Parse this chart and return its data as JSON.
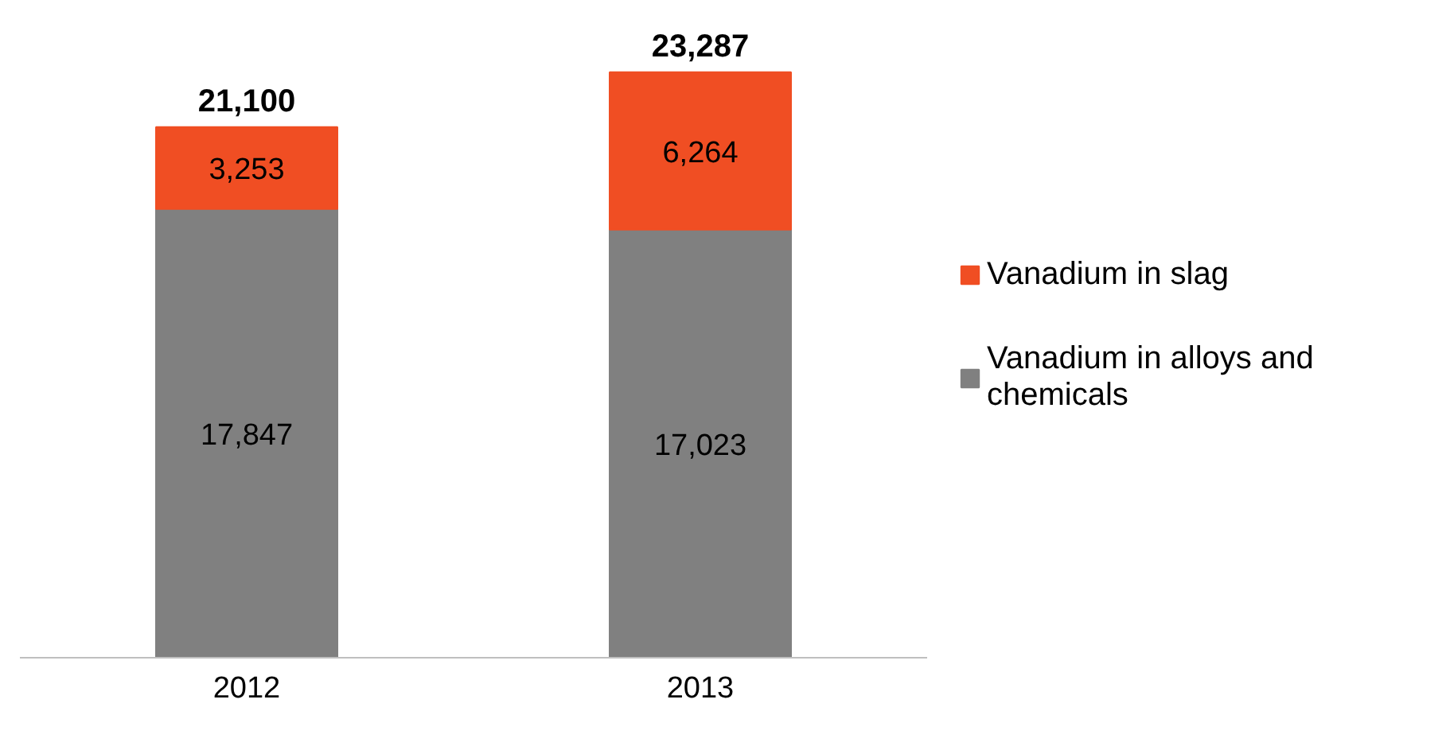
{
  "chart_data": {
    "type": "bar",
    "stacked": true,
    "categories": [
      "2012",
      "2013"
    ],
    "series": [
      {
        "name": "Vanadium in alloys and chemicals",
        "color": "#808080",
        "values": [
          17847,
          17023
        ],
        "value_labels": [
          "17,847",
          "17,023"
        ]
      },
      {
        "name": "Vanadium in slag",
        "color": "#f04e23",
        "values": [
          3253,
          6264
        ],
        "value_labels": [
          "3,253",
          "6,264"
        ]
      }
    ],
    "totals": [
      "21,100",
      "23,287"
    ],
    "legend": "right",
    "grid": false,
    "tick_labels": "x"
  }
}
